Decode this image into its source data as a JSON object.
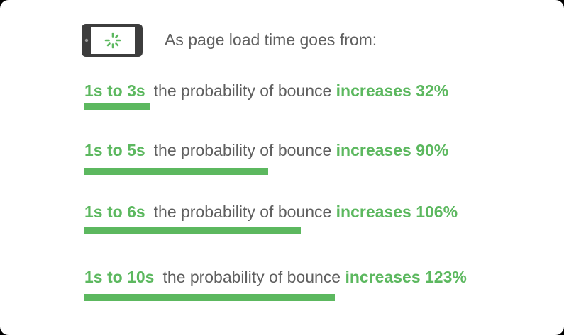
{
  "header": {
    "text": "As page load time goes from:"
  },
  "colors": {
    "accent": "#5cb85f",
    "text": "#5f5f5f",
    "phone_body": "#3d3d3d",
    "phone_screen": "#ffffff"
  },
  "icons": {
    "header": "phone-loading-icon"
  },
  "chart_data": {
    "type": "bar",
    "orientation": "horizontal",
    "categories": [
      "1s to 3s",
      "1s to 5s",
      "1s to 6s",
      "1s to 10s"
    ],
    "values": [
      32,
      90,
      106,
      123
    ],
    "unit": "%",
    "xlim": [
      0,
      174
    ],
    "grid": false,
    "rows": [
      {
        "range": "1s to 3s",
        "middle": "the probability of bounce",
        "increase": "increases 32%",
        "value": 32
      },
      {
        "range": "1s to 5s",
        "middle": "the probability of bounce",
        "increase": "increases 90%",
        "value": 90
      },
      {
        "range": "1s to 6s",
        "middle": "the probability of bounce",
        "increase": "increases 106%",
        "value": 106
      },
      {
        "range": "1s to 10s",
        "middle": "the probability of bounce",
        "increase": "increases 123%",
        "value": 123
      }
    ]
  }
}
